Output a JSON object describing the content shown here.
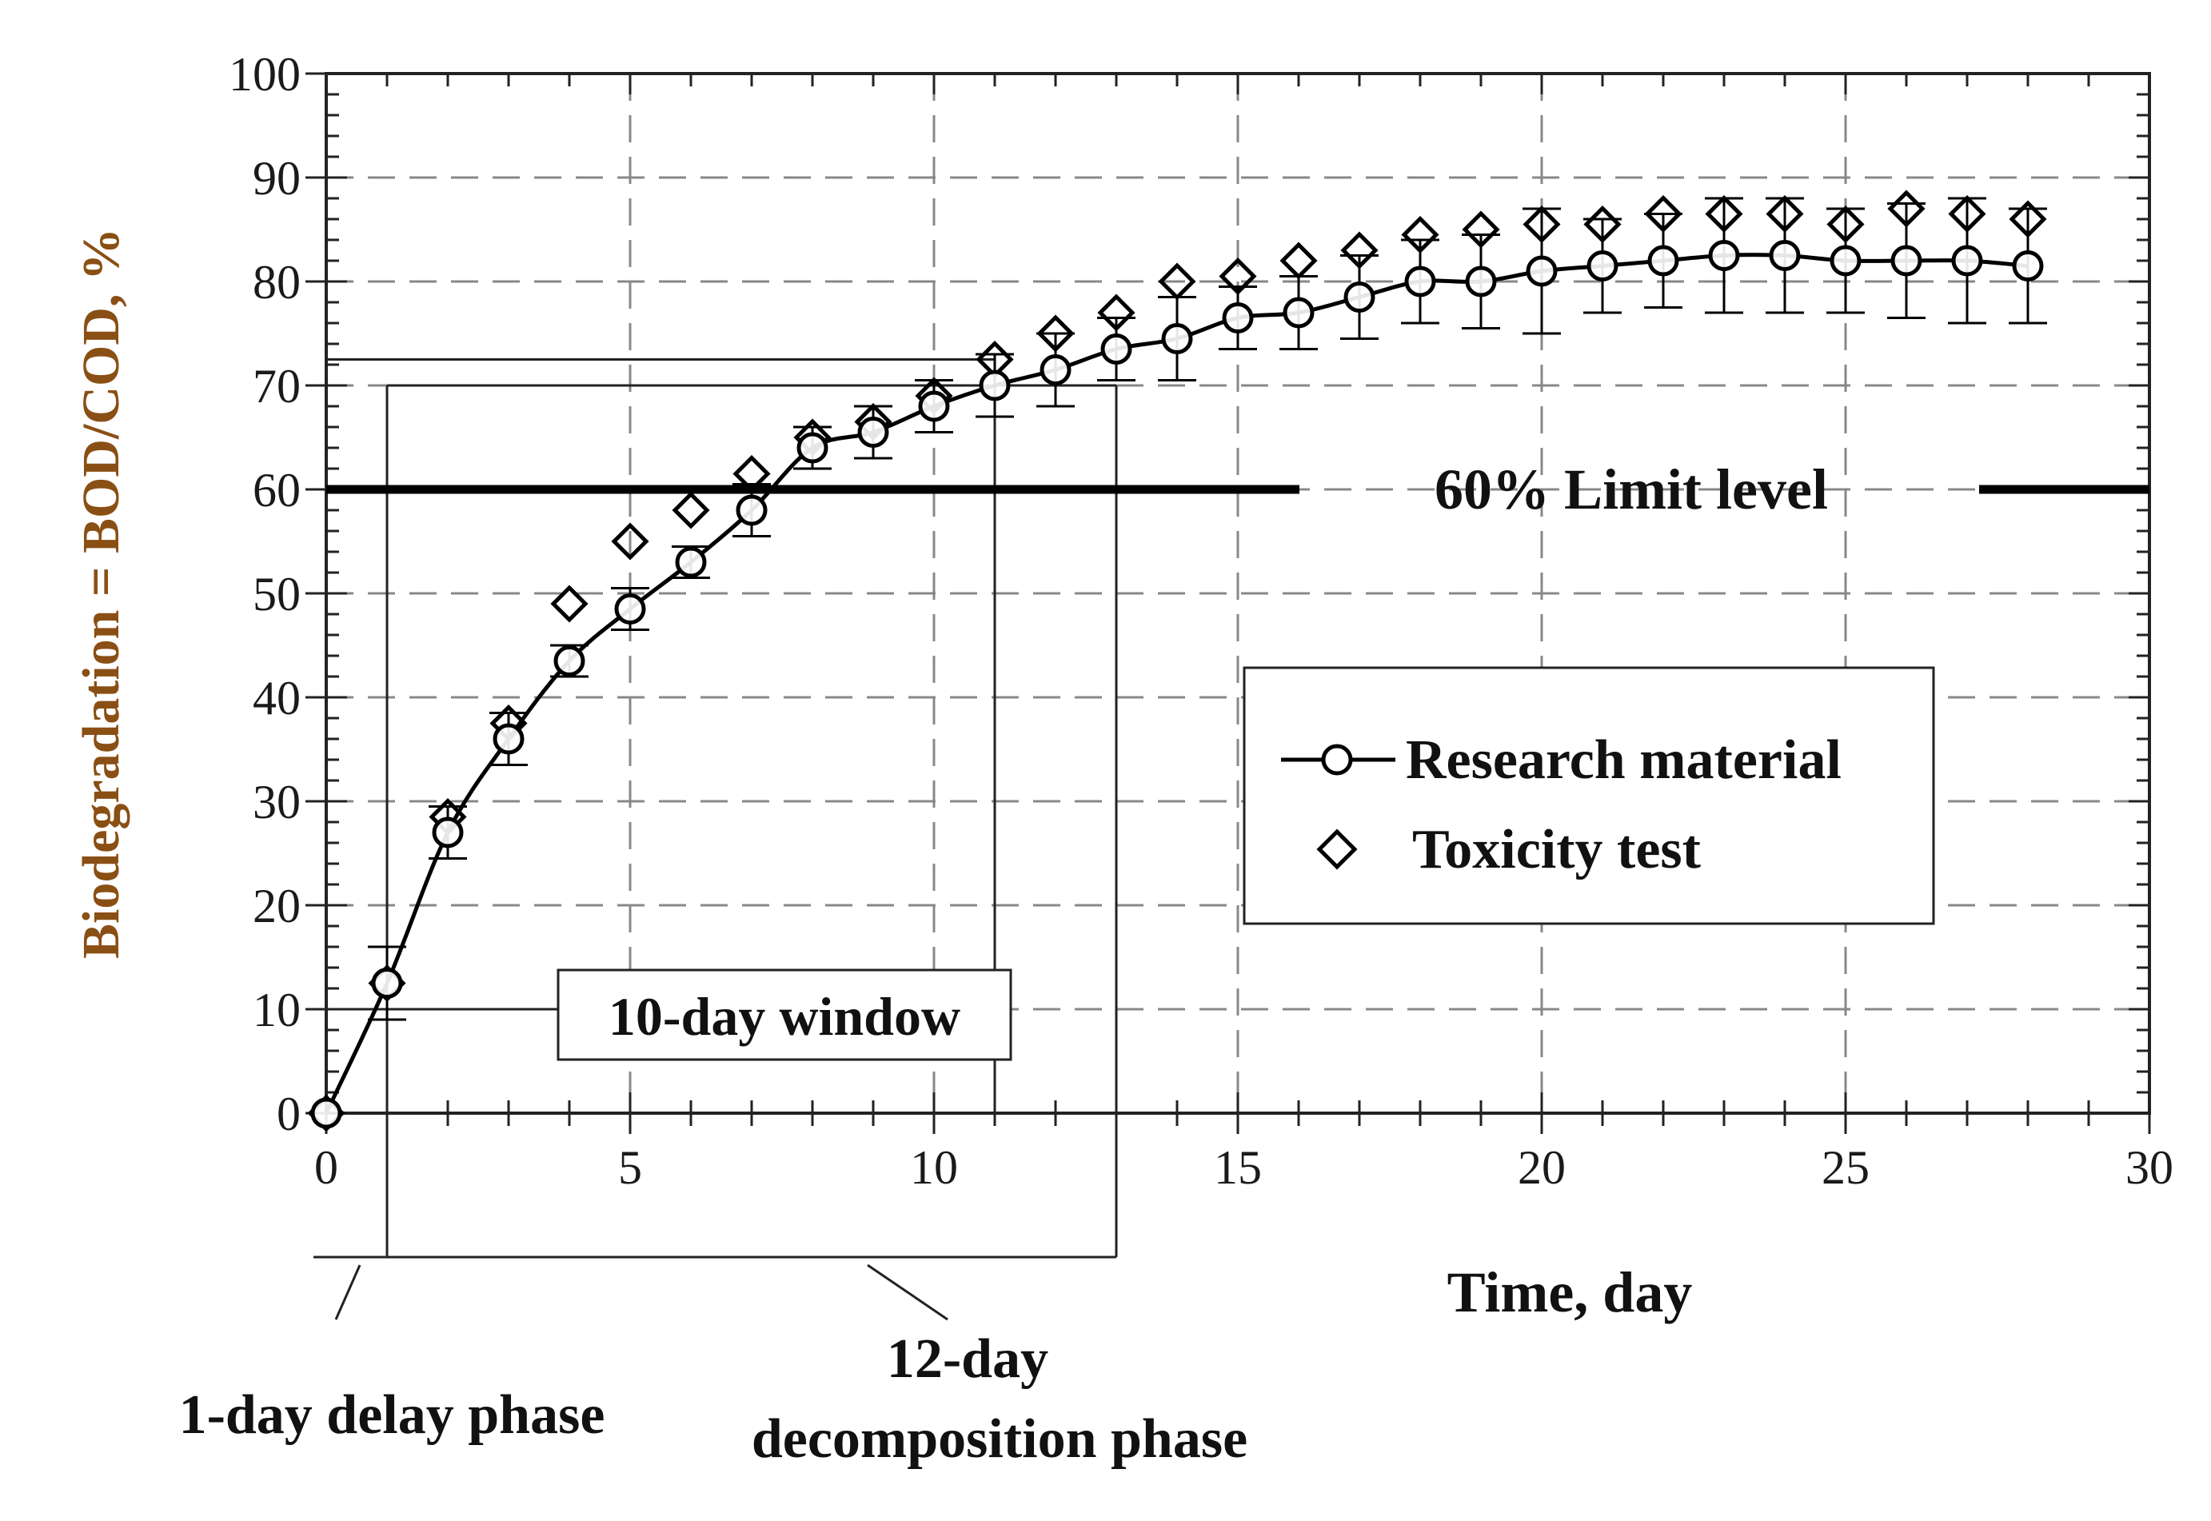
{
  "chart_data": {
    "type": "scatter",
    "xlabel": "Time, day",
    "ylabel": "Biodegradation = BOD/COD, %",
    "xlim": [
      0,
      30
    ],
    "ylim": [
      0,
      100
    ],
    "x_ticks": [
      0,
      5,
      10,
      15,
      20,
      25,
      30
    ],
    "y_ticks": [
      0,
      10,
      20,
      30,
      40,
      50,
      60,
      70,
      80,
      90,
      100
    ],
    "grid": true,
    "series": [
      {
        "name": "Research material",
        "marker": "circle",
        "line": true,
        "x": [
          0,
          1,
          2,
          3,
          4,
          5,
          6,
          7,
          8,
          9,
          10,
          11,
          12,
          13,
          14,
          15,
          16,
          17,
          18,
          19,
          20,
          21,
          22,
          23,
          24,
          25,
          26,
          27,
          28
        ],
        "values": [
          0,
          12.5,
          27,
          36,
          43.5,
          48.5,
          53,
          58,
          64,
          65.5,
          68,
          70,
          71.5,
          73.5,
          74.5,
          76.5,
          77,
          78.5,
          80,
          80,
          81,
          81.5,
          82,
          82.5,
          82.5,
          82,
          82,
          82,
          81.5
        ],
        "error": [
          0,
          3.5,
          2.5,
          2.5,
          1.5,
          2,
          1.5,
          2.5,
          2,
          2.5,
          2.5,
          3,
          3.5,
          3,
          4,
          3,
          3.5,
          4,
          4,
          4.5,
          6,
          4.5,
          4.5,
          5.5,
          5.5,
          5,
          5.5,
          6,
          5.5
        ]
      },
      {
        "name": "Toxicity test",
        "marker": "diamond",
        "line": false,
        "x": [
          0,
          1,
          2,
          3,
          4,
          5,
          6,
          7,
          8,
          9,
          10,
          11,
          12,
          13,
          14,
          15,
          16,
          17,
          18,
          19,
          20,
          21,
          22,
          23,
          24,
          25,
          26,
          27,
          28
        ],
        "values": [
          0,
          12.5,
          28.5,
          37.5,
          49,
          55,
          58,
          61.5,
          65,
          66.5,
          69,
          72.5,
          75,
          77,
          80,
          80.5,
          82,
          83,
          84.5,
          85,
          85.5,
          85.5,
          86.5,
          86.5,
          86.5,
          85.5,
          87,
          86.5,
          86
        ]
      }
    ],
    "limit_line": {
      "value": 60,
      "label": "60% Limit level"
    },
    "reference_lines": {
      "y_at_10_percent": 10,
      "y_at_day_11": 72.5,
      "y_at_window_top": 70
    },
    "phases": {
      "window_label": "10-day window",
      "window_start_day": 1,
      "window_end_day": 11,
      "delay_label": "1-day delay phase",
      "delay_end_day": 1,
      "decomposition_label_line1": "12-day",
      "decomposition_label_line2": "decomposition phase",
      "decomposition_end_day": 13
    },
    "legend": [
      "Research material",
      "Toxicity test"
    ],
    "legend_position": "right-center"
  }
}
